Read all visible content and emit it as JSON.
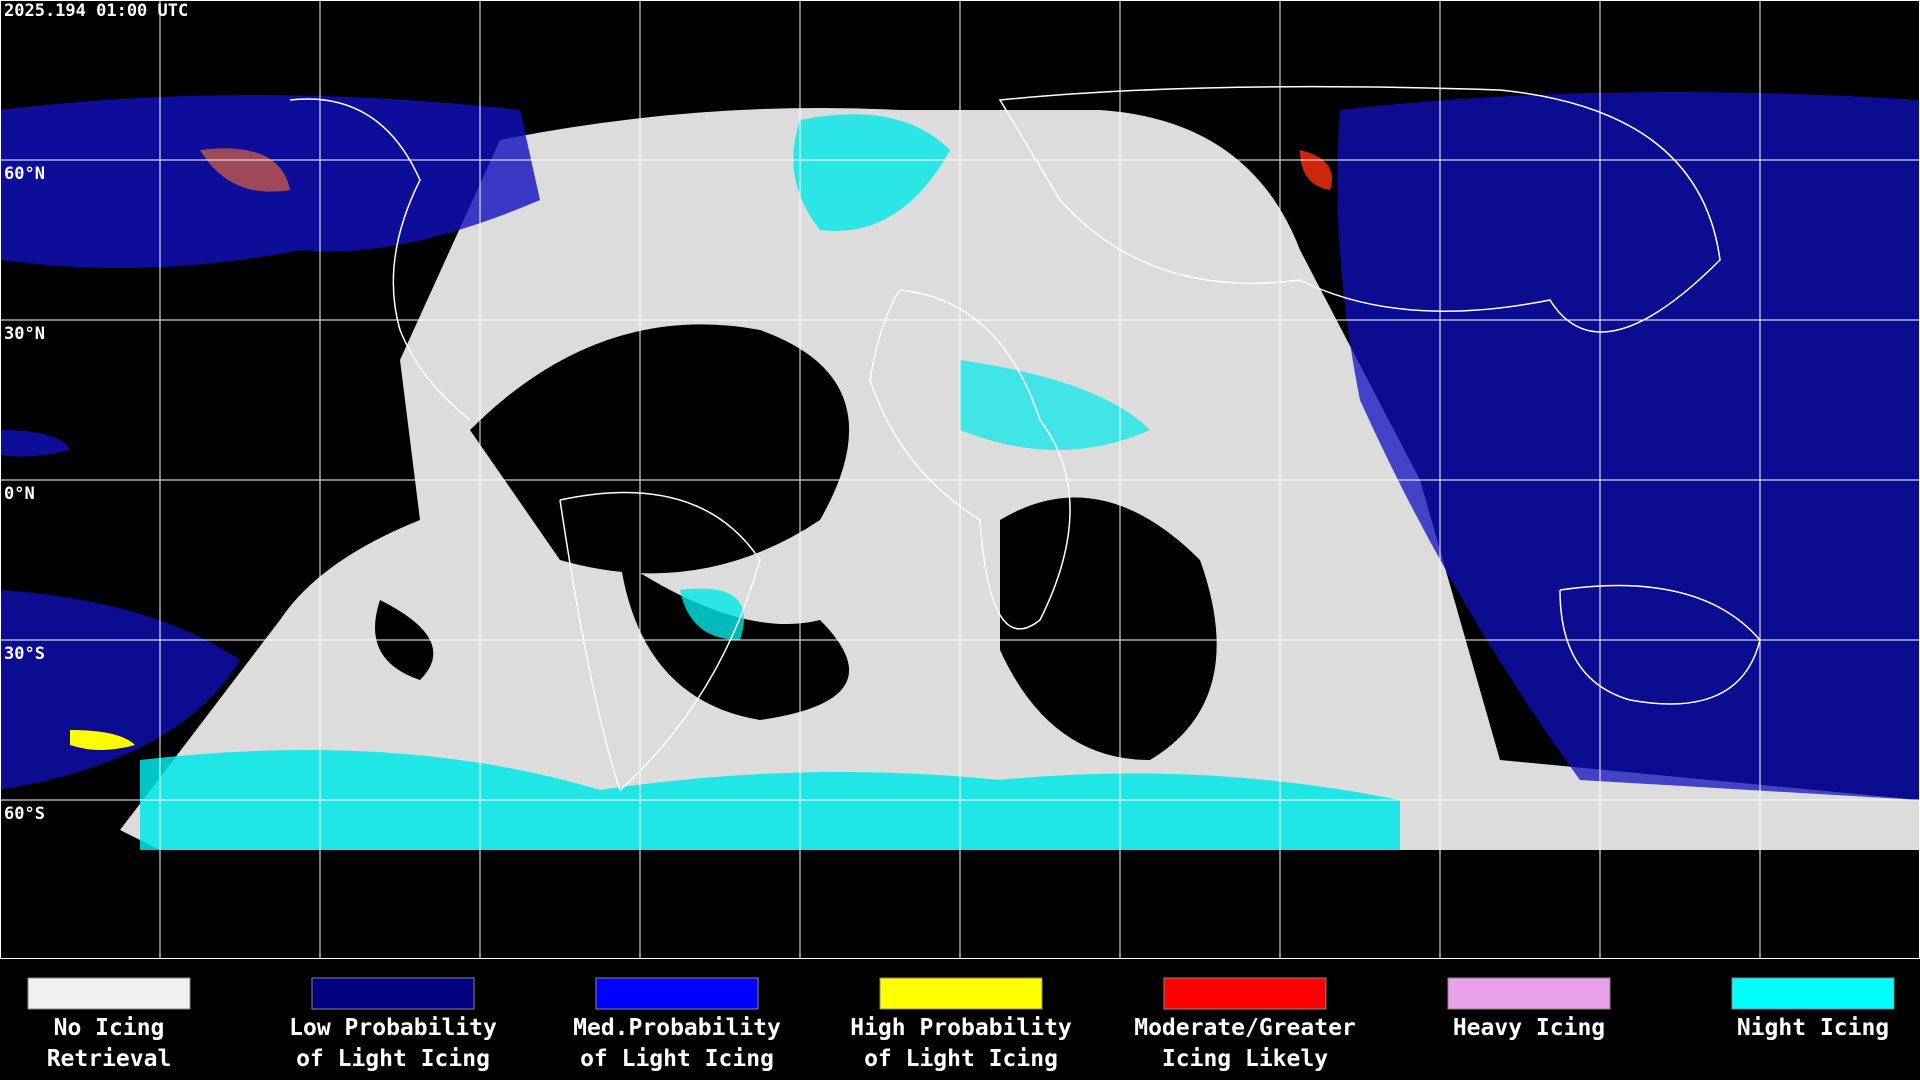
{
  "header": {
    "title": "2025.194 01:00 UTC"
  },
  "map": {
    "latitude_labels": [
      "60°N",
      "30°N",
      "0°N",
      "30°S",
      "60°S"
    ]
  },
  "legend": {
    "items": [
      {
        "lines": [
          "No Icing",
          "Retrieval"
        ],
        "color": "#f0f0f0"
      },
      {
        "lines": [
          "Low Probability",
          "of Light Icing"
        ],
        "color": "#000080"
      },
      {
        "lines": [
          "Med.Probability",
          "of Light Icing"
        ],
        "color": "#0000ff"
      },
      {
        "lines": [
          "High Probability",
          "of Light Icing"
        ],
        "color": "#ffff00"
      },
      {
        "lines": [
          "Moderate/Greater",
          "Icing Likely"
        ],
        "color": "#ff0000"
      },
      {
        "lines": [
          "Heavy Icing"
        ],
        "color": "#e8a0e8"
      },
      {
        "lines": [
          "Night Icing"
        ],
        "color": "#00ffff"
      }
    ]
  }
}
